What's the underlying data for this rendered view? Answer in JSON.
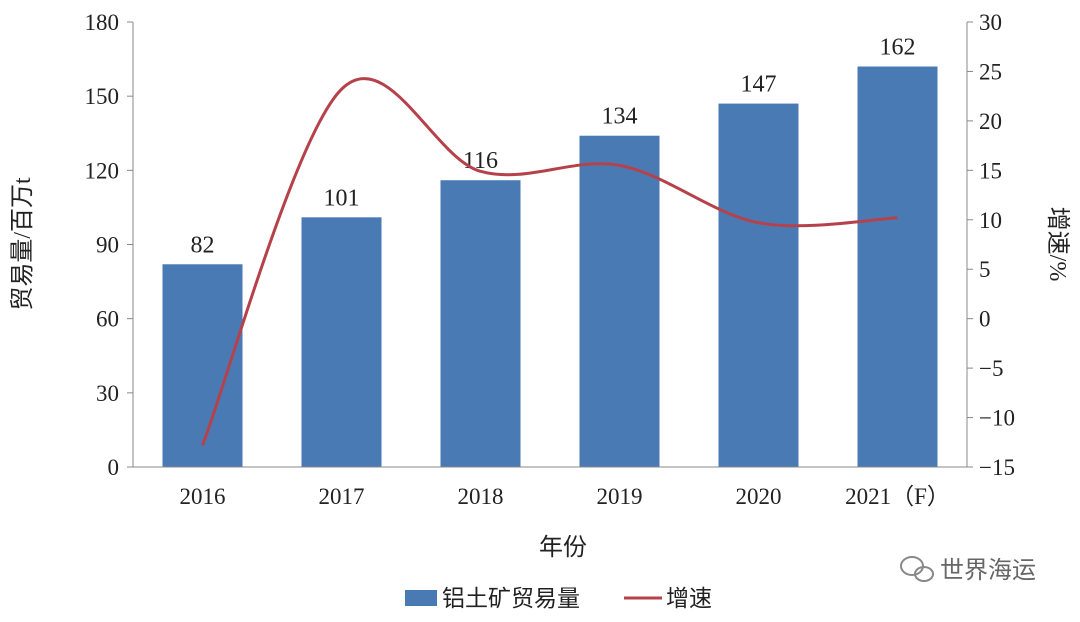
{
  "chart_data": {
    "type": "bar",
    "categories": [
      "2016",
      "2017",
      "2018",
      "2019",
      "2020",
      "2021（F）"
    ],
    "xlabel": "年份",
    "ylabel": "贸易量/百万t",
    "y2label": "增速/%",
    "ylim": [
      0,
      180
    ],
    "yticks": [
      0,
      30,
      60,
      90,
      120,
      150,
      180
    ],
    "y2lim": [
      -15,
      30
    ],
    "y2ticks": [
      -15,
      -10,
      -5,
      0,
      5,
      10,
      15,
      20,
      25,
      30
    ],
    "grid": false,
    "legend_position": "bottom",
    "series": [
      {
        "name": "铝土矿贸易量",
        "type": "bar",
        "axis": "left",
        "values": [
          82,
          101,
          116,
          134,
          147,
          162
        ],
        "data_labels": [
          "82",
          "101",
          "116",
          "134",
          "147",
          "162"
        ],
        "color": "#4a7ab4"
      },
      {
        "name": "增速",
        "type": "line",
        "axis": "right",
        "smooth": true,
        "values": [
          -12.8,
          23.2,
          14.9,
          15.5,
          9.7,
          10.2
        ],
        "color": "#b5424a"
      }
    ]
  },
  "watermark": {
    "text": "世界海运",
    "icon": "wechat-icon"
  }
}
